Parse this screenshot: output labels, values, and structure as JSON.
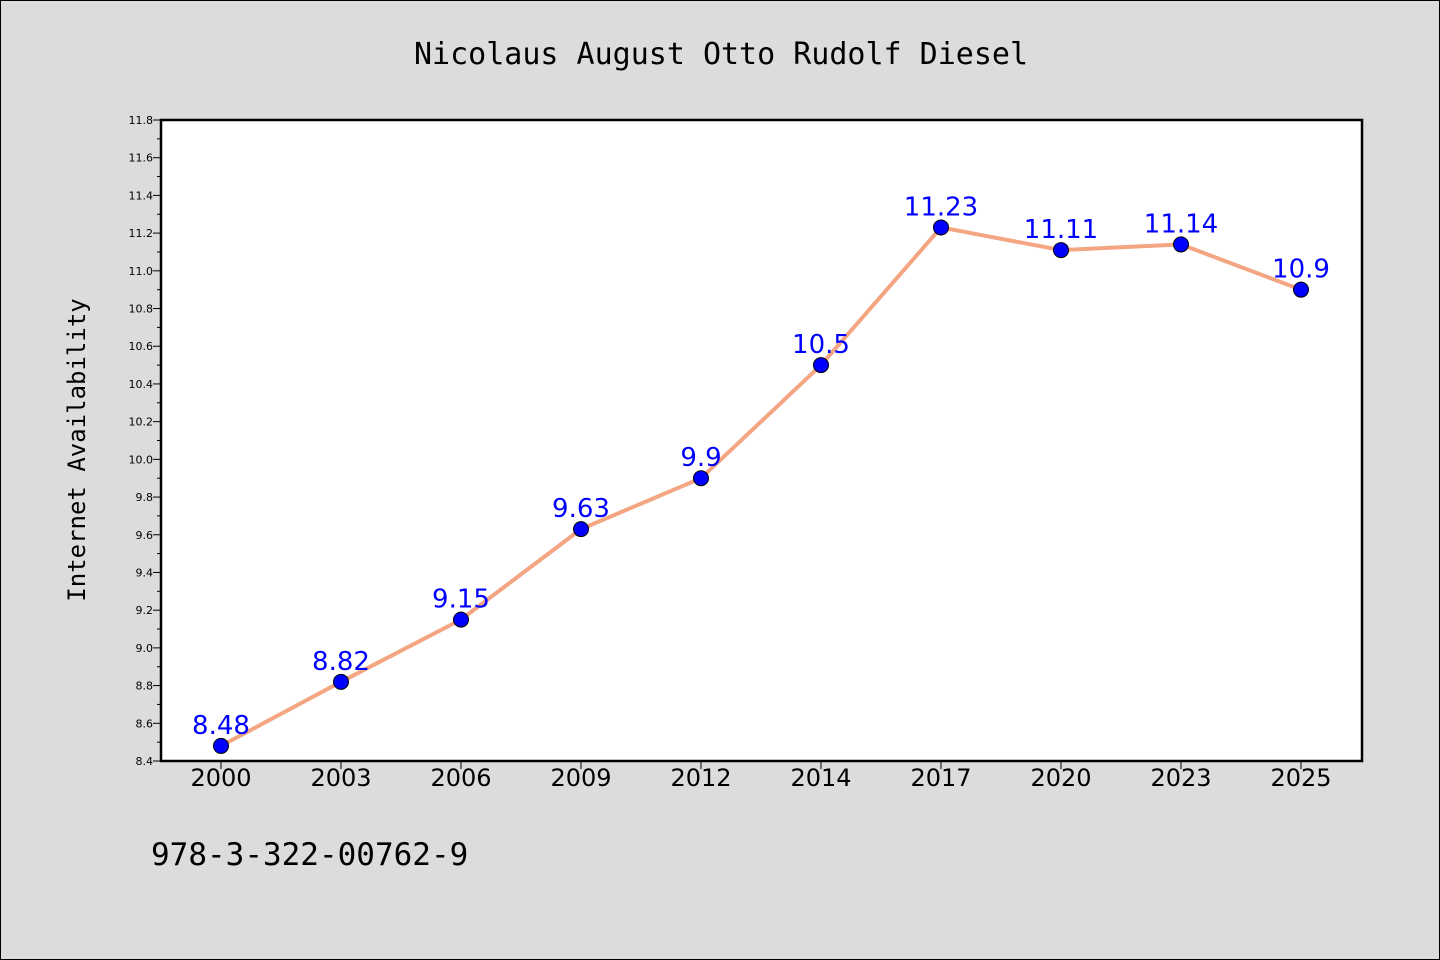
{
  "chart_data": {
    "type": "line",
    "title": "Nicolaus August Otto Rudolf Diesel",
    "xlabel": "",
    "ylabel": "Internet Availability",
    "categories": [
      "2000",
      "2003",
      "2006",
      "2009",
      "2012",
      "2014",
      "2017",
      "2020",
      "2023",
      "2025"
    ],
    "series": [
      {
        "values": [
          8.48,
          8.82,
          9.15,
          9.63,
          9.9,
          10.5,
          11.23,
          11.11,
          11.14,
          10.9
        ],
        "data_labels": [
          "8.48",
          "8.82",
          "9.15",
          "9.63",
          "9.9",
          "10.5",
          "11.23",
          "11.11",
          "11.14",
          "10.9"
        ],
        "line_color": "#f4a582",
        "marker_color": "#0000ff",
        "label_color": "#0000ff"
      }
    ],
    "ylim": [
      8.4,
      11.8
    ],
    "yticks": [
      "8.4",
      "8.6",
      "8.8",
      "9.0",
      "9.2",
      "9.4",
      "9.6",
      "9.8",
      "10.0",
      "10.2",
      "10.4",
      "10.6",
      "10.8",
      "11.0",
      "11.2",
      "11.4",
      "11.6",
      "11.8"
    ],
    "grid": false,
    "legend": "none"
  },
  "footer": {
    "text": "978-3-322-00762-9"
  },
  "colors": {
    "figure_background": "#dcdcdc",
    "plot_background": "#ffffff"
  }
}
